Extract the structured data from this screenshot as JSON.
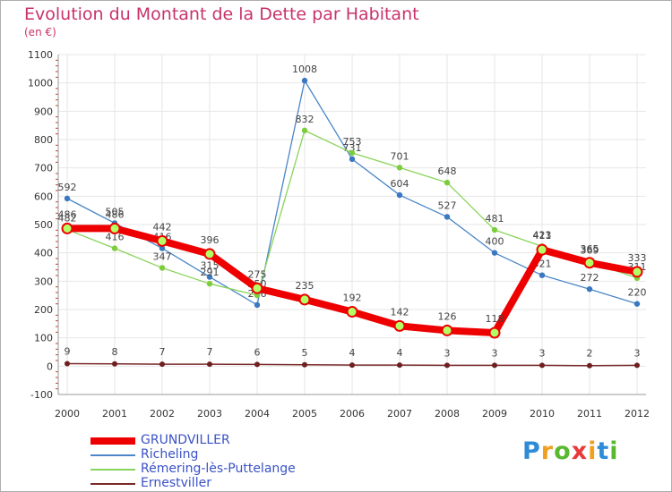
{
  "chart_data": {
    "type": "line",
    "title": "Evolution du Montant de la Dette par Habitant",
    "subtitle": "(en €)",
    "x": [
      "2000",
      "2001",
      "2002",
      "2003",
      "2004",
      "2005",
      "2006",
      "2007",
      "2008",
      "2009",
      "2010",
      "2011",
      "2012"
    ],
    "ylim": [
      -100,
      1100
    ],
    "yticks": [
      -100,
      0,
      100,
      200,
      300,
      400,
      500,
      600,
      700,
      800,
      900,
      1000,
      1100
    ],
    "grid": true,
    "legend_placement": "bottom-left",
    "series": [
      {
        "name": "Richeling",
        "color": "#4a86c8",
        "point_color": "#3a78c0",
        "values": [
          592,
          505,
          416,
          315,
          216,
          1008,
          731,
          604,
          527,
          400,
          321,
          272,
          220
        ],
        "labels": [
          "592",
          "505",
          "416",
          "315",
          "216",
          "1008",
          "731",
          "604",
          "527",
          "400",
          "321",
          "272",
          "220"
        ]
      },
      {
        "name": "Rémering-lès-Puttelange",
        "color": "#8ad35a",
        "point_color": "#7ccd3c",
        "values": [
          482,
          416,
          347,
          291,
          250,
          832,
          753,
          701,
          648,
          481,
          423,
          369,
          311
        ],
        "labels": [
          "482",
          "416",
          "347",
          "291",
          "250",
          "832",
          "753",
          "701",
          "648",
          "481",
          "423",
          "369",
          "311"
        ]
      },
      {
        "name": "Ernestviller",
        "color": "#7b2a2a",
        "point_color": "#6e1f1f",
        "values": [
          9,
          8,
          7,
          7,
          6,
          5,
          4,
          4,
          3,
          3,
          3,
          2,
          3
        ],
        "labels": [
          "9",
          "8",
          "7",
          "7",
          "6",
          "5",
          "4",
          "4",
          "3",
          "3",
          "3",
          "2",
          "3"
        ]
      },
      {
        "name": "GRUNDVILLER",
        "color": "#ee0000",
        "point_color": "#ee0000",
        "values": [
          486,
          486,
          442,
          396,
          275,
          235,
          192,
          142,
          126,
          118,
          411,
          365,
          333
        ],
        "labels": [
          "486",
          "486",
          "442",
          "396",
          "275",
          "235",
          "192",
          "142",
          "126",
          "118",
          "411",
          "365",
          "333"
        ]
      }
    ],
    "legend_order": [
      "GRUNDVILLER",
      "Richeling",
      "Rémering-lès-Puttelange",
      "Ernestviller"
    ]
  },
  "logo": {
    "letters": [
      "P",
      "r",
      "o",
      "x",
      "i",
      "t",
      "i"
    ],
    "colors": [
      "#2e8bd8",
      "#f0a020",
      "#58b830",
      "#e83a3a",
      "#f0a020",
      "#2e8bd8",
      "#58b830"
    ]
  }
}
